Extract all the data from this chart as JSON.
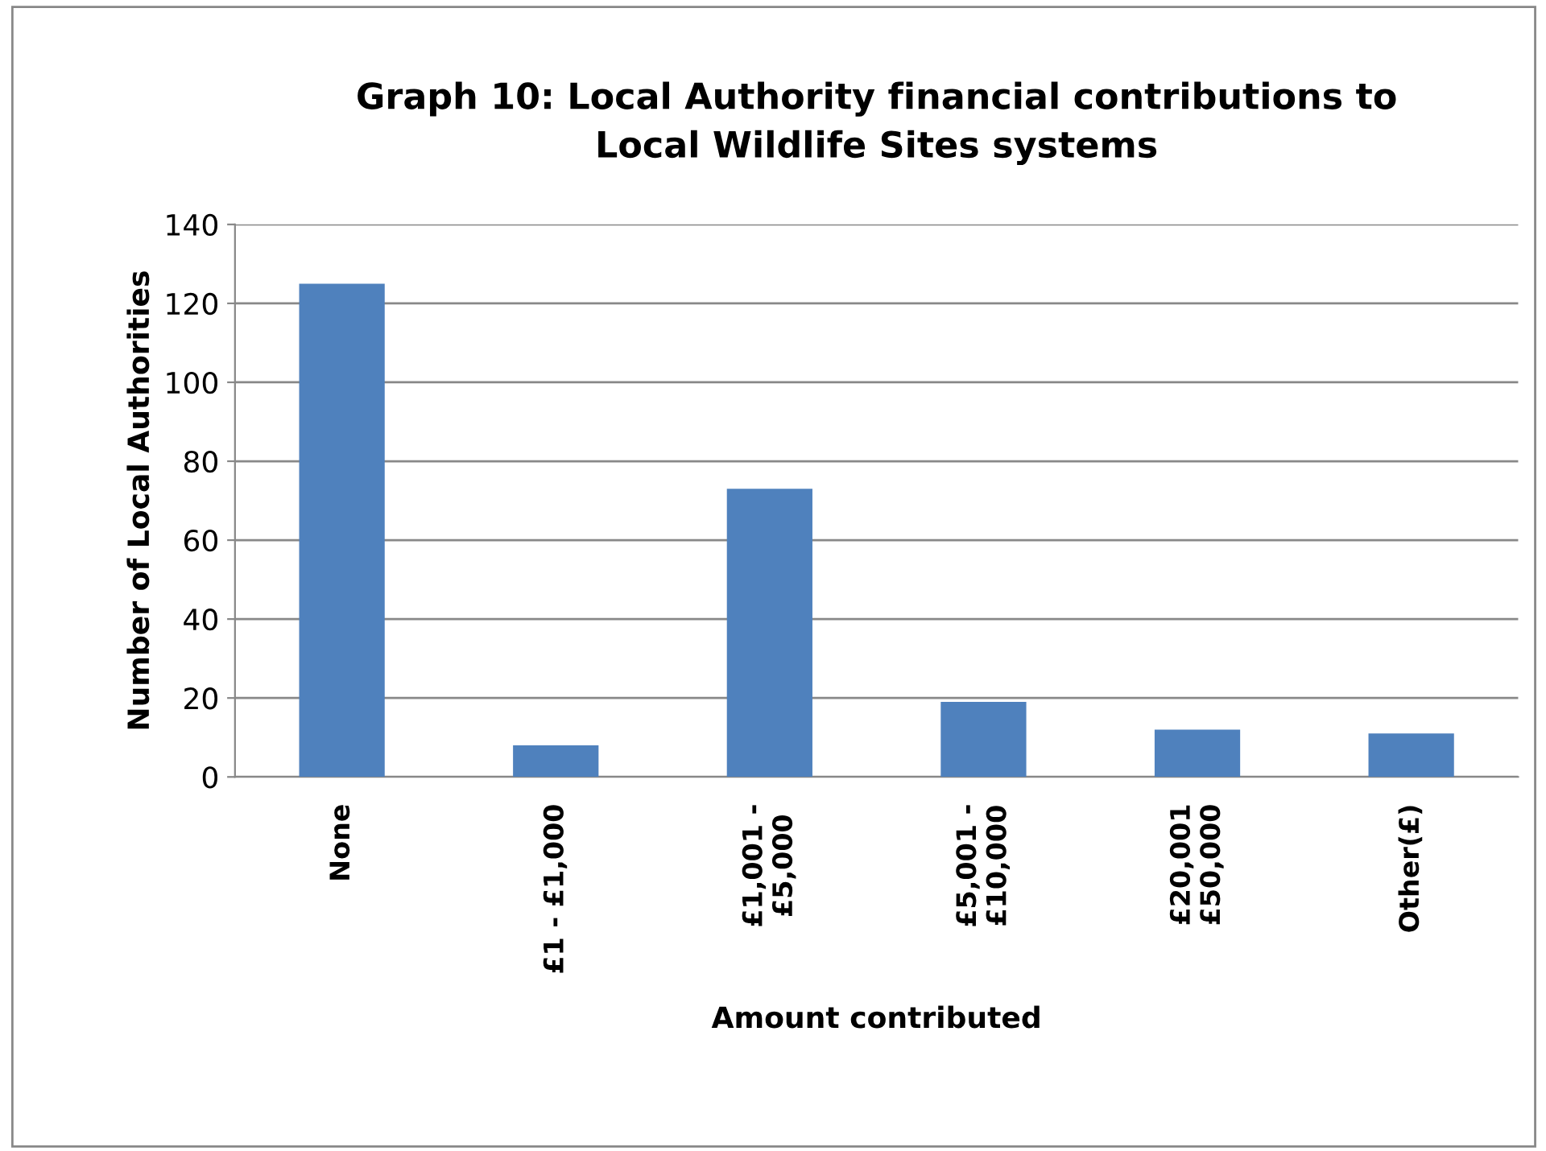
{
  "chart_data": {
    "type": "bar",
    "title": "Graph 10: Local Authority financial contributions to\nLocal Wildlife Sites systems",
    "xlabel": "Amount contributed",
    "ylabel": "Number of Local Authorities",
    "categories": [
      "None",
      "£1 - £1,000",
      "£1,001 -\n£5,000",
      "£5,001 -\n£10,000",
      "£20,001\n£50,000",
      "Other(£)"
    ],
    "values": [
      125,
      8,
      73,
      19,
      12,
      11
    ],
    "color": "#4f81bd",
    "ylim": [
      0,
      140
    ],
    "yticks": [
      0,
      20,
      40,
      60,
      80,
      100,
      120,
      140
    ],
    "grid": "y"
  }
}
